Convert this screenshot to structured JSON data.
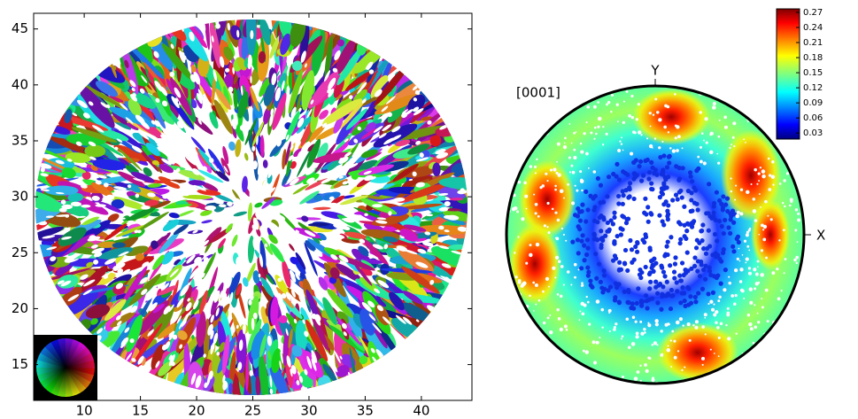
{
  "chart_data": [
    {
      "type": "orientation-map",
      "xlim": [
        5.5,
        44.5
      ],
      "ylim": [
        11.8,
        46.4
      ],
      "xticks": [
        10,
        15,
        20,
        25,
        30,
        35,
        40
      ],
      "yticks": [
        15,
        20,
        25,
        30,
        35,
        40,
        45
      ]
    },
    {
      "type": "pole-figure",
      "title": "[0001]",
      "x_label": "X",
      "y_label": "Y",
      "colormap": "jet",
      "clim": [
        0.018,
        0.277
      ],
      "cticks": [
        0.03,
        0.06,
        0.09,
        0.12,
        0.15,
        0.18,
        0.21,
        0.24,
        0.27
      ]
    }
  ]
}
